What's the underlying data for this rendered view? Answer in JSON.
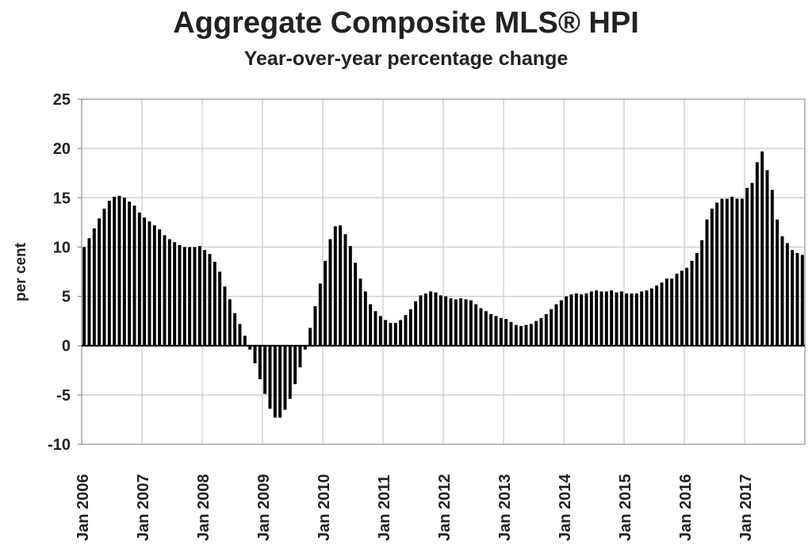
{
  "chart_data": {
    "type": "bar",
    "title": "Aggregate Composite MLS® HPI",
    "subtitle": "Year-over-year percentage change",
    "xlabel": "",
    "ylabel": "per cent",
    "ylim": [
      -10,
      25
    ],
    "yticks": [
      "25",
      "20",
      "15",
      "10",
      "5",
      "0",
      "-5",
      "-10"
    ],
    "ytick_values": [
      25,
      20,
      15,
      10,
      5,
      0,
      -5,
      -10
    ],
    "xtick_labels": [
      "Jan 2006",
      "Jan 2007",
      "Jan 2008",
      "Jan 2009",
      "Jan 2010",
      "Jan 2011",
      "Jan 2012",
      "Jan 2013",
      "Jan 2014",
      "Jan 2015",
      "Jan 2016",
      "Jan 2017"
    ],
    "x_start": "Jan 2006",
    "x_frequency": "monthly",
    "grid": true,
    "bar_color": "#000000",
    "values": [
      10.0,
      10.9,
      11.9,
      12.9,
      13.9,
      14.7,
      15.1,
      15.2,
      15.0,
      14.6,
      14.2,
      13.5,
      13.0,
      12.6,
      12.2,
      11.8,
      11.2,
      10.8,
      10.5,
      10.2,
      10.0,
      10.0,
      10.0,
      10.1,
      9.7,
      9.3,
      8.5,
      7.5,
      6.0,
      4.7,
      3.3,
      2.2,
      1.0,
      -0.4,
      -1.8,
      -3.4,
      -4.9,
      -6.4,
      -7.3,
      -7.3,
      -6.5,
      -5.4,
      -3.9,
      -2.2,
      -0.4,
      1.8,
      4.0,
      6.3,
      8.6,
      10.8,
      12.1,
      12.2,
      11.3,
      10.1,
      8.4,
      6.8,
      5.5,
      4.2,
      3.5,
      3.0,
      2.6,
      2.3,
      2.3,
      2.6,
      3.1,
      3.7,
      4.5,
      5.1,
      5.3,
      5.5,
      5.4,
      5.1,
      5.0,
      4.8,
      4.7,
      4.8,
      4.7,
      4.6,
      4.2,
      3.8,
      3.5,
      3.2,
      3.0,
      2.8,
      2.7,
      2.4,
      2.1,
      2.0,
      2.1,
      2.2,
      2.5,
      2.8,
      3.2,
      3.7,
      4.2,
      4.6,
      5.0,
      5.2,
      5.3,
      5.2,
      5.3,
      5.5,
      5.6,
      5.5,
      5.5,
      5.6,
      5.4,
      5.5,
      5.3,
      5.3,
      5.3,
      5.5,
      5.6,
      5.8,
      6.1,
      6.4,
      6.8,
      6.8,
      7.3,
      7.6,
      7.9,
      8.6,
      9.4,
      10.7,
      12.8,
      13.9,
      14.5,
      14.9,
      14.9,
      15.1,
      14.9,
      14.9,
      16.0,
      16.5,
      18.6,
      19.7,
      17.8,
      15.8,
      12.8,
      11.1,
      10.4,
      9.7,
      9.4,
      9.2
    ]
  }
}
